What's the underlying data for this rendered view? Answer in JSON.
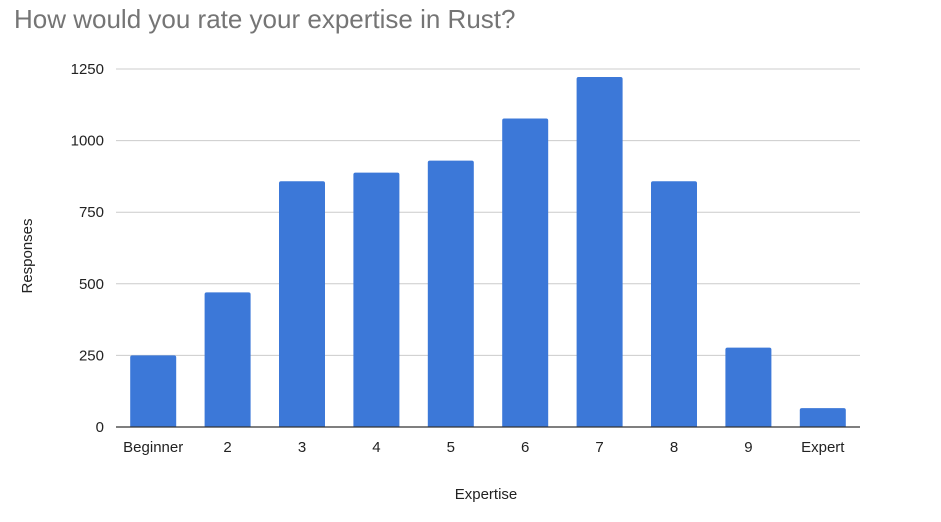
{
  "chart_data": {
    "type": "bar",
    "title": "How would you rate your expertise in Rust?",
    "xlabel": "Expertise",
    "ylabel": "Responses",
    "categories": [
      "Beginner",
      "2",
      "3",
      "4",
      "5",
      "6",
      "7",
      "8",
      "9",
      "Expert"
    ],
    "values": [
      250,
      470,
      858,
      888,
      930,
      1077,
      1222,
      858,
      277,
      66
    ],
    "ylim": [
      0,
      1250
    ],
    "yticks": [
      "0",
      "250",
      "500",
      "750",
      "1000",
      "1250"
    ],
    "grid": true,
    "legend": "none",
    "bar_color": "#3c78d8",
    "grid_color": "#cccccc"
  }
}
